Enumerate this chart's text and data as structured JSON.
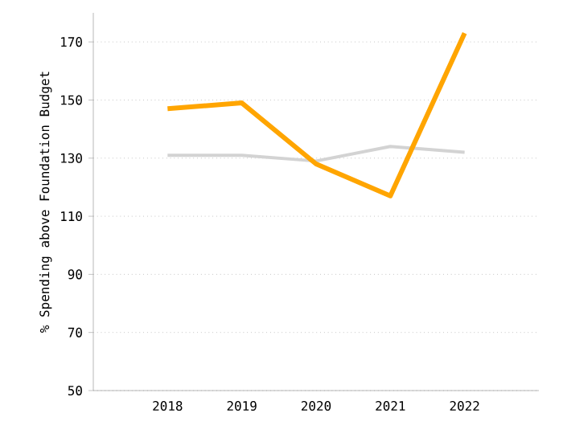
{
  "chart_data": {
    "type": "line",
    "ylabel": "% Spending above Foundation Budget",
    "categories": [
      "2018",
      "2019",
      "2020",
      "2021",
      "2022"
    ],
    "series": [
      {
        "color": "#d3d3d3",
        "values": [
          131,
          131,
          129,
          134,
          132
        ]
      },
      {
        "color": "#ffa500",
        "values": [
          147,
          149,
          128,
          117,
          173
        ]
      }
    ],
    "ylim": [
      50,
      180
    ],
    "yticks": [
      50,
      70,
      90,
      110,
      130,
      150,
      170
    ],
    "grid": "y",
    "marker": "none",
    "line_style": "solid"
  }
}
